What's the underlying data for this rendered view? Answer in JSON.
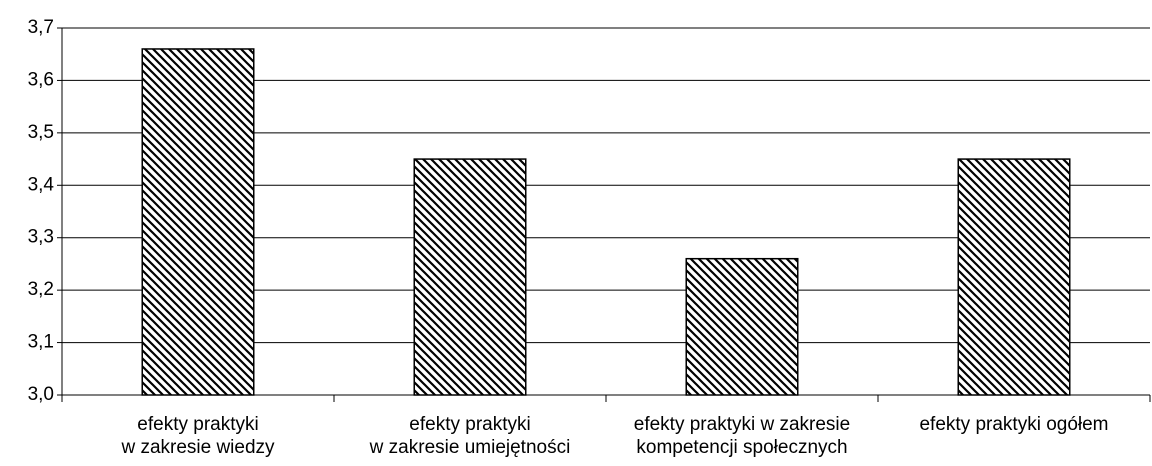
{
  "chart_data": {
    "type": "bar",
    "categories": [
      "efekty praktyki\nw zakresie wiedzy",
      "efekty praktyki\nw zakresie umiejętności",
      "efekty praktyki w zakresie\nkompetencji społecznych",
      "efekty praktyki ogółem"
    ],
    "values": [
      3.66,
      3.45,
      3.26,
      3.45
    ],
    "color": "#000000",
    "ylim": [
      3.0,
      3.7
    ],
    "yticks": [
      {
        "value": 3.0,
        "label": "3,0"
      },
      {
        "value": 3.1,
        "label": "3,1"
      },
      {
        "value": 3.2,
        "label": "3,2"
      },
      {
        "value": 3.3,
        "label": "3,3"
      },
      {
        "value": 3.4,
        "label": "3,4"
      },
      {
        "value": 3.5,
        "label": "3,5"
      },
      {
        "value": 3.6,
        "label": "3,6"
      },
      {
        "value": 3.7,
        "label": "3,7"
      }
    ],
    "grid": true
  }
}
